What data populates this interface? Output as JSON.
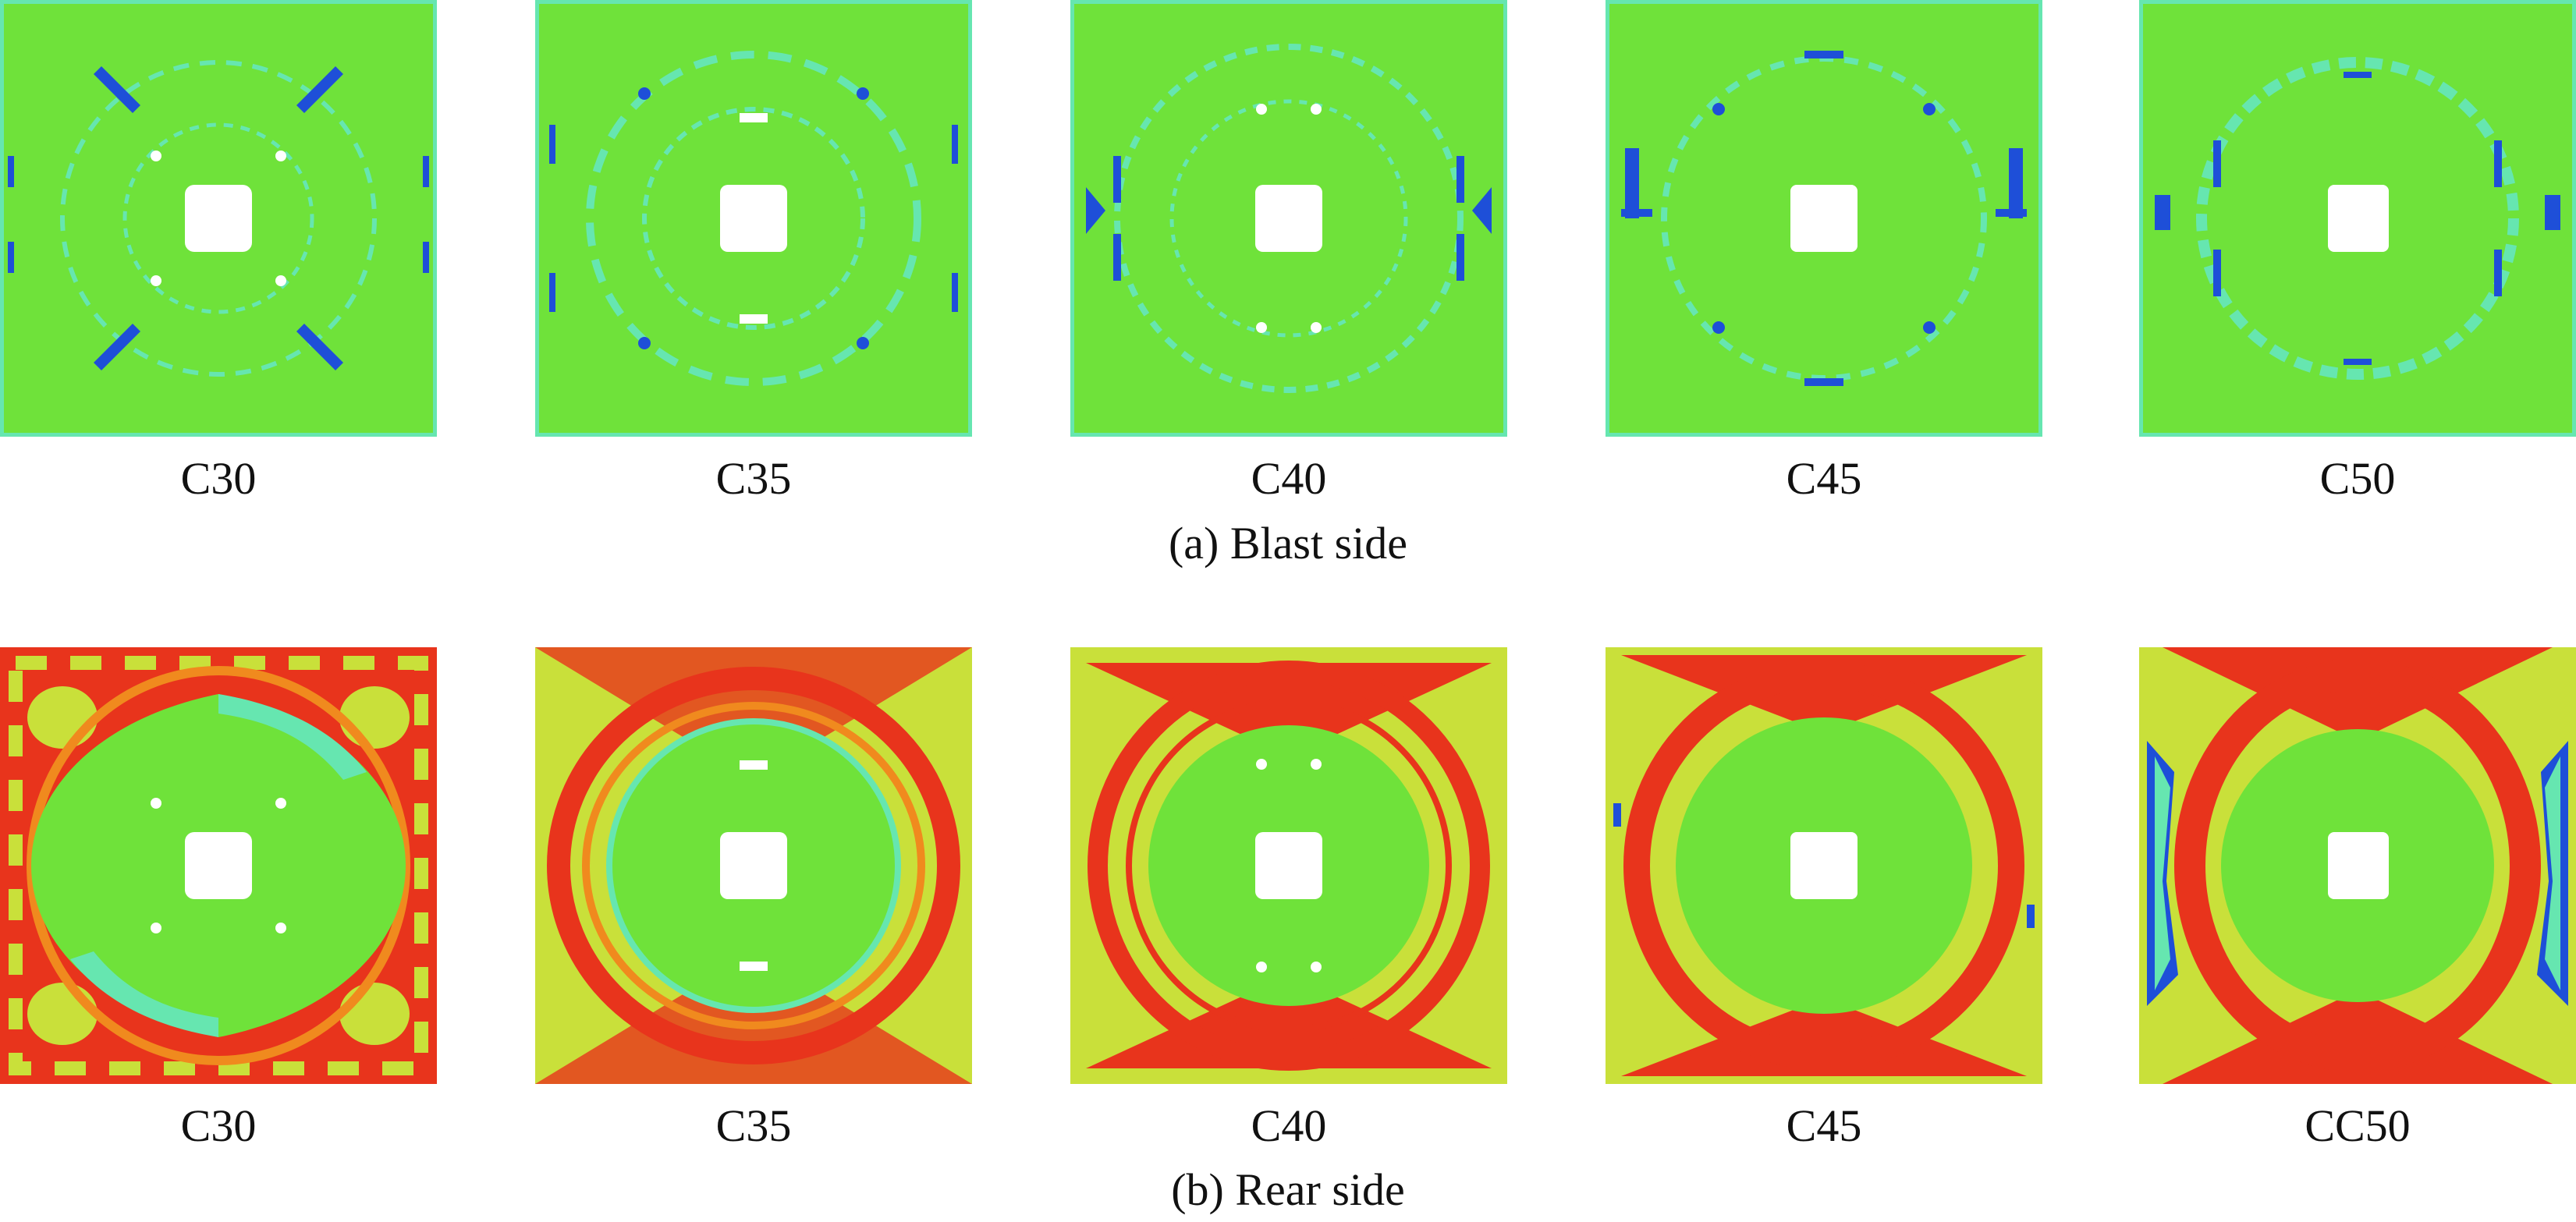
{
  "figure": {
    "rows": [
      {
        "caption": "(a) Blast side",
        "panels": [
          {
            "label": "C30"
          },
          {
            "label": "C35"
          },
          {
            "label": "C40"
          },
          {
            "label": "C45"
          },
          {
            "label": "C50"
          }
        ]
      },
      {
        "caption": "(b) Rear side",
        "panels": [
          {
            "label": "C30"
          },
          {
            "label": "C35"
          },
          {
            "label": "C40"
          },
          {
            "label": "C45"
          },
          {
            "label": "CC50"
          }
        ]
      }
    ]
  },
  "colors": {
    "green": "#6fe23a",
    "cyan": "#66e6b0",
    "blue": "#1e4fd8",
    "red": "#e8341c",
    "orange": "#f08a1e",
    "yellow": "#c9e03a",
    "white": "#ffffff"
  }
}
